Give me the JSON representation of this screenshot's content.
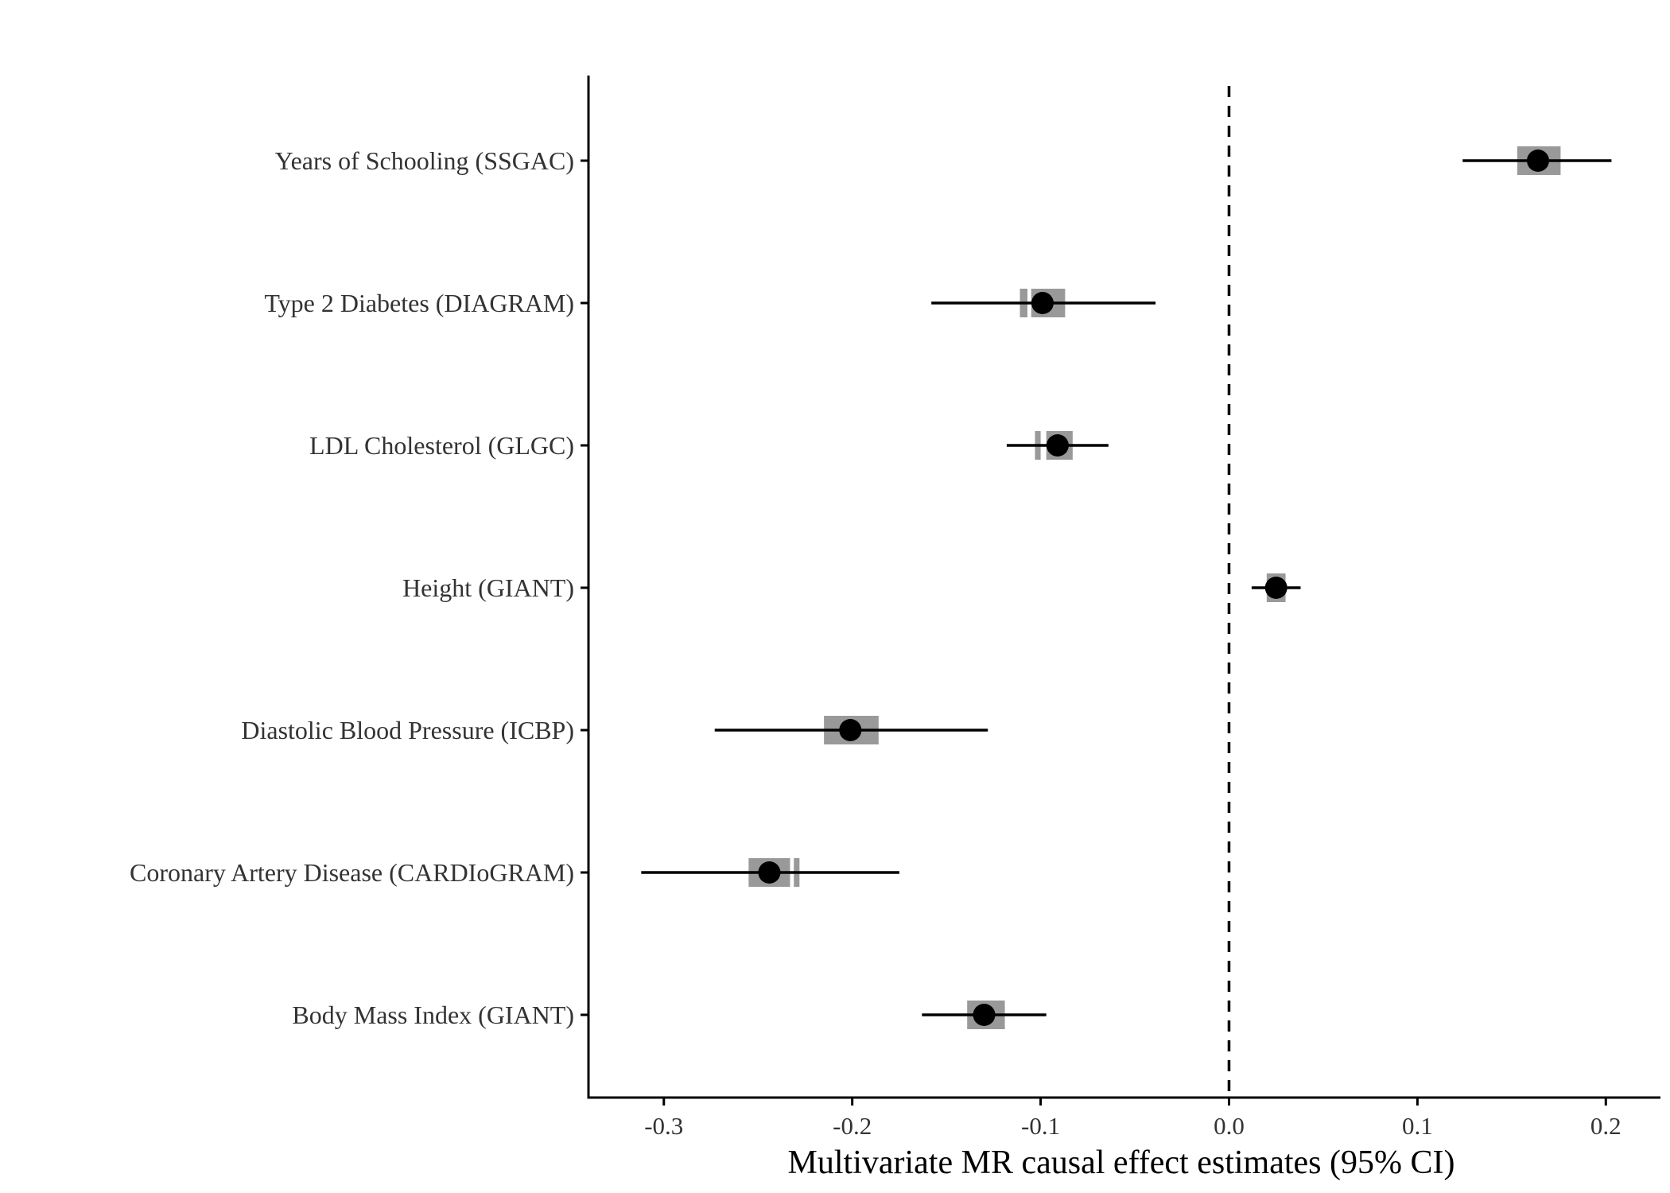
{
  "chart_data": {
    "type": "forest",
    "title": "",
    "xlabel": "Multivariate MR causal effect estimates (95% CI)",
    "ylabel": "",
    "xlim": [
      -0.34,
      0.229
    ],
    "xticks": [
      -0.3,
      -0.2,
      -0.1,
      0.0,
      0.1,
      0.2
    ],
    "xtick_labels": [
      "-0.3",
      "-0.2",
      "-0.1",
      "0.0",
      "0.1",
      "0.2"
    ],
    "reference_line": {
      "x": 0.0,
      "style": "dashed"
    },
    "grid": false,
    "colors": {
      "point": "#000000",
      "interval": "#000000",
      "box": "#999999",
      "axis": "#000000",
      "text": "#333333"
    },
    "rows": [
      {
        "label": "Years of Schooling (SSGAC)",
        "estimate": 0.164,
        "ci_low": 0.124,
        "ci_high": 0.203,
        "boxes": [
          [
            0.153,
            0.176
          ]
        ]
      },
      {
        "label": "Type 2 Diabetes (DIAGRAM)",
        "estimate": -0.099,
        "ci_low": -0.158,
        "ci_high": -0.039,
        "boxes": [
          [
            -0.111,
            -0.107
          ],
          [
            -0.105,
            -0.087
          ]
        ]
      },
      {
        "label": "LDL Cholesterol (GLGC)",
        "estimate": -0.091,
        "ci_low": -0.118,
        "ci_high": -0.064,
        "boxes": [
          [
            -0.103,
            -0.1
          ],
          [
            -0.097,
            -0.083
          ]
        ]
      },
      {
        "label": "Height (GIANT)",
        "estimate": 0.025,
        "ci_low": 0.012,
        "ci_high": 0.038,
        "boxes": [
          [
            0.02,
            0.03
          ]
        ]
      },
      {
        "label": "Diastolic Blood Pressure (ICBP)",
        "estimate": -0.201,
        "ci_low": -0.273,
        "ci_high": -0.128,
        "boxes": [
          [
            -0.215,
            -0.186
          ]
        ]
      },
      {
        "label": "Coronary Artery Disease (CARDIoGRAM)",
        "estimate": -0.244,
        "ci_low": -0.312,
        "ci_high": -0.175,
        "boxes": [
          [
            -0.255,
            -0.233
          ],
          [
            -0.231,
            -0.228
          ]
        ]
      },
      {
        "label": "Body Mass Index (GIANT)",
        "estimate": -0.13,
        "ci_low": -0.163,
        "ci_high": -0.097,
        "boxes": [
          [
            -0.139,
            -0.119
          ]
        ]
      }
    ]
  }
}
